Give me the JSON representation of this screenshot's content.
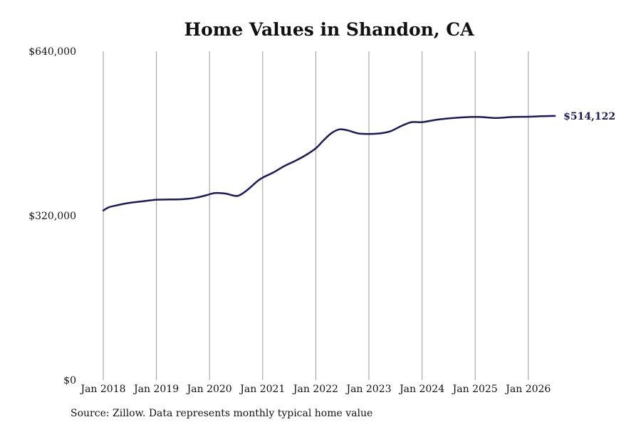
{
  "chart_data": {
    "type": "line",
    "title": "Home Values in Shandon, CA",
    "y_ticks": [
      {
        "value": 0,
        "label": "$0"
      },
      {
        "value": 320000,
        "label": "$320,000"
      },
      {
        "value": 640000,
        "label": "$640,000"
      }
    ],
    "ylim": [
      0,
      640000
    ],
    "x_ticks": [
      {
        "value": 2018,
        "label": "Jan 2018"
      },
      {
        "value": 2019,
        "label": "Jan 2019"
      },
      {
        "value": 2020,
        "label": "Jan 2020"
      },
      {
        "value": 2021,
        "label": "Jan 2021"
      },
      {
        "value": 2022,
        "label": "Jan 2022"
      },
      {
        "value": 2023,
        "label": "Jan 2023"
      },
      {
        "value": 2024,
        "label": "Jan 2024"
      },
      {
        "value": 2025,
        "label": "Jan 2025"
      },
      {
        "value": 2026,
        "label": "Jan 2026"
      }
    ],
    "xlim": [
      2018,
      2026.5
    ],
    "grid": "vertical",
    "series": [
      {
        "color": "#1a1a5e",
        "points": [
          [
            2018.0,
            330000
          ],
          [
            2018.1,
            336000
          ],
          [
            2018.25,
            340000
          ],
          [
            2018.5,
            345000
          ],
          [
            2018.75,
            348000
          ],
          [
            2019.0,
            351000
          ],
          [
            2019.25,
            351500
          ],
          [
            2019.5,
            352000
          ],
          [
            2019.75,
            355000
          ],
          [
            2019.95,
            360000
          ],
          [
            2020.1,
            364000
          ],
          [
            2020.3,
            363000
          ],
          [
            2020.45,
            359000
          ],
          [
            2020.55,
            359000
          ],
          [
            2020.7,
            369000
          ],
          [
            2020.9,
            387000
          ],
          [
            2021.0,
            394000
          ],
          [
            2021.2,
            404000
          ],
          [
            2021.4,
            416000
          ],
          [
            2021.6,
            426000
          ],
          [
            2021.8,
            437000
          ],
          [
            2022.0,
            451000
          ],
          [
            2022.15,
            467000
          ],
          [
            2022.3,
            481000
          ],
          [
            2022.45,
            488000
          ],
          [
            2022.6,
            486000
          ],
          [
            2022.8,
            480000
          ],
          [
            2023.0,
            479000
          ],
          [
            2023.2,
            480000
          ],
          [
            2023.4,
            484000
          ],
          [
            2023.6,
            494000
          ],
          [
            2023.8,
            502000
          ],
          [
            2024.0,
            502000
          ],
          [
            2024.3,
            507000
          ],
          [
            2024.6,
            510000
          ],
          [
            2024.9,
            512000
          ],
          [
            2025.1,
            512000
          ],
          [
            2025.4,
            510000
          ],
          [
            2025.7,
            512000
          ],
          [
            2026.0,
            512500
          ],
          [
            2026.25,
            513500
          ],
          [
            2026.5,
            514122
          ]
        ]
      }
    ],
    "end_label": "$514,122"
  },
  "footer": {
    "source": "Source: Zillow. Data represents monthly typical home value"
  }
}
